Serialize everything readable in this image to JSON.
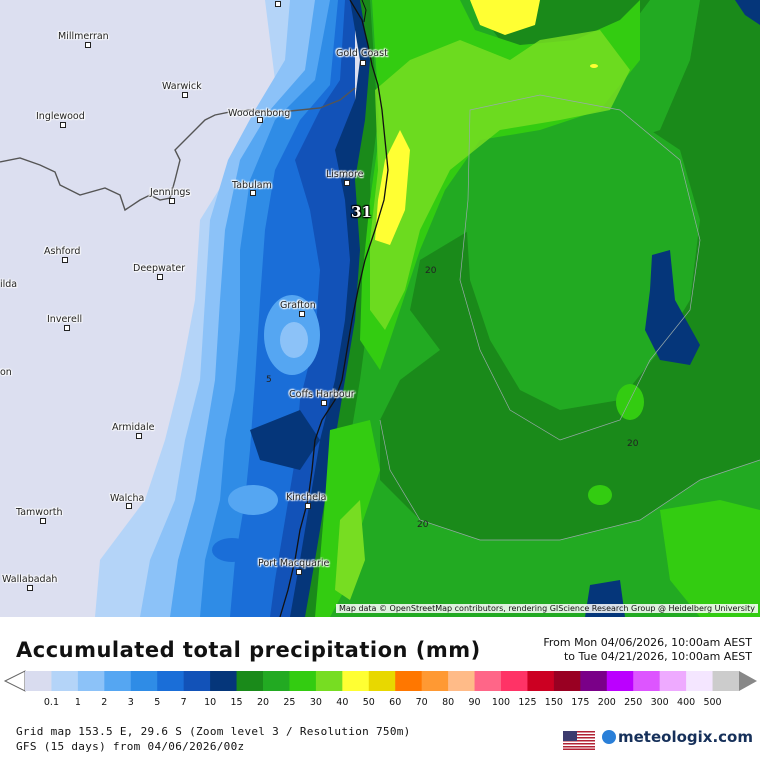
{
  "map": {
    "attribution": "Map data © OpenStreetMap contributors, rendering GIScience Research Group @ Heidelberg University",
    "max_value_label": "31",
    "contour_labels": [
      "20",
      "5",
      "20",
      "20"
    ],
    "cities": [
      {
        "name": "Millmerran"
      },
      {
        "name": "Warwick"
      },
      {
        "name": "Inglewood"
      },
      {
        "name": "Gold Coast"
      },
      {
        "name": "Woodenbong"
      },
      {
        "name": "Tabulam"
      },
      {
        "name": "Lismore"
      },
      {
        "name": "Jennings"
      },
      {
        "name": "Ashford"
      },
      {
        "name": "Deepwater"
      },
      {
        "name": "Grafton"
      },
      {
        "name": "Inverell"
      },
      {
        "name": "ilda"
      },
      {
        "name": "on"
      },
      {
        "name": "Coffs Harbour"
      },
      {
        "name": "Armidale"
      },
      {
        "name": "Walcha"
      },
      {
        "name": "Kinchela"
      },
      {
        "name": "Tamworth"
      },
      {
        "name": "Port Macquarie"
      },
      {
        "name": "Wallabadah"
      }
    ]
  },
  "legend": {
    "title": "Accumulated total precipitation (mm)",
    "from": "From Mon 04/06/2026, 10:00am AEST",
    "to": "to Tue 04/21/2026, 10:00am AEST",
    "labels": [
      "0.1",
      "1",
      "2",
      "3",
      "5",
      "7",
      "10",
      "15",
      "20",
      "25",
      "30",
      "40",
      "50",
      "60",
      "70",
      "80",
      "90",
      "100",
      "125",
      "150",
      "175",
      "200",
      "250",
      "300",
      "400",
      "500"
    ],
    "colors": [
      "#d9dcef",
      "#b4d4f8",
      "#8cc2f8",
      "#55a6f2",
      "#2f8ce6",
      "#1a6ed8",
      "#1252b8",
      "#05367a",
      "#1a8a1a",
      "#22aa22",
      "#33cc11",
      "#77dd22",
      "#ffff33",
      "#e8d800",
      "#ff7700",
      "#ff9933",
      "#ffbb88",
      "#ff6688",
      "#ff3366",
      "#cc0022",
      "#990022",
      "#7a0088",
      "#bb00ff",
      "#dd55ff",
      "#eeaaff",
      "#f4e6ff",
      "#cccccc"
    ]
  },
  "footer": {
    "grid": "Grid map 153.5 E, 29.6 S (Zoom level 3 / Resolution 750m)",
    "model": "GFS (15 days) from  04/06/2026/00z",
    "logo": "meteologix.com"
  }
}
